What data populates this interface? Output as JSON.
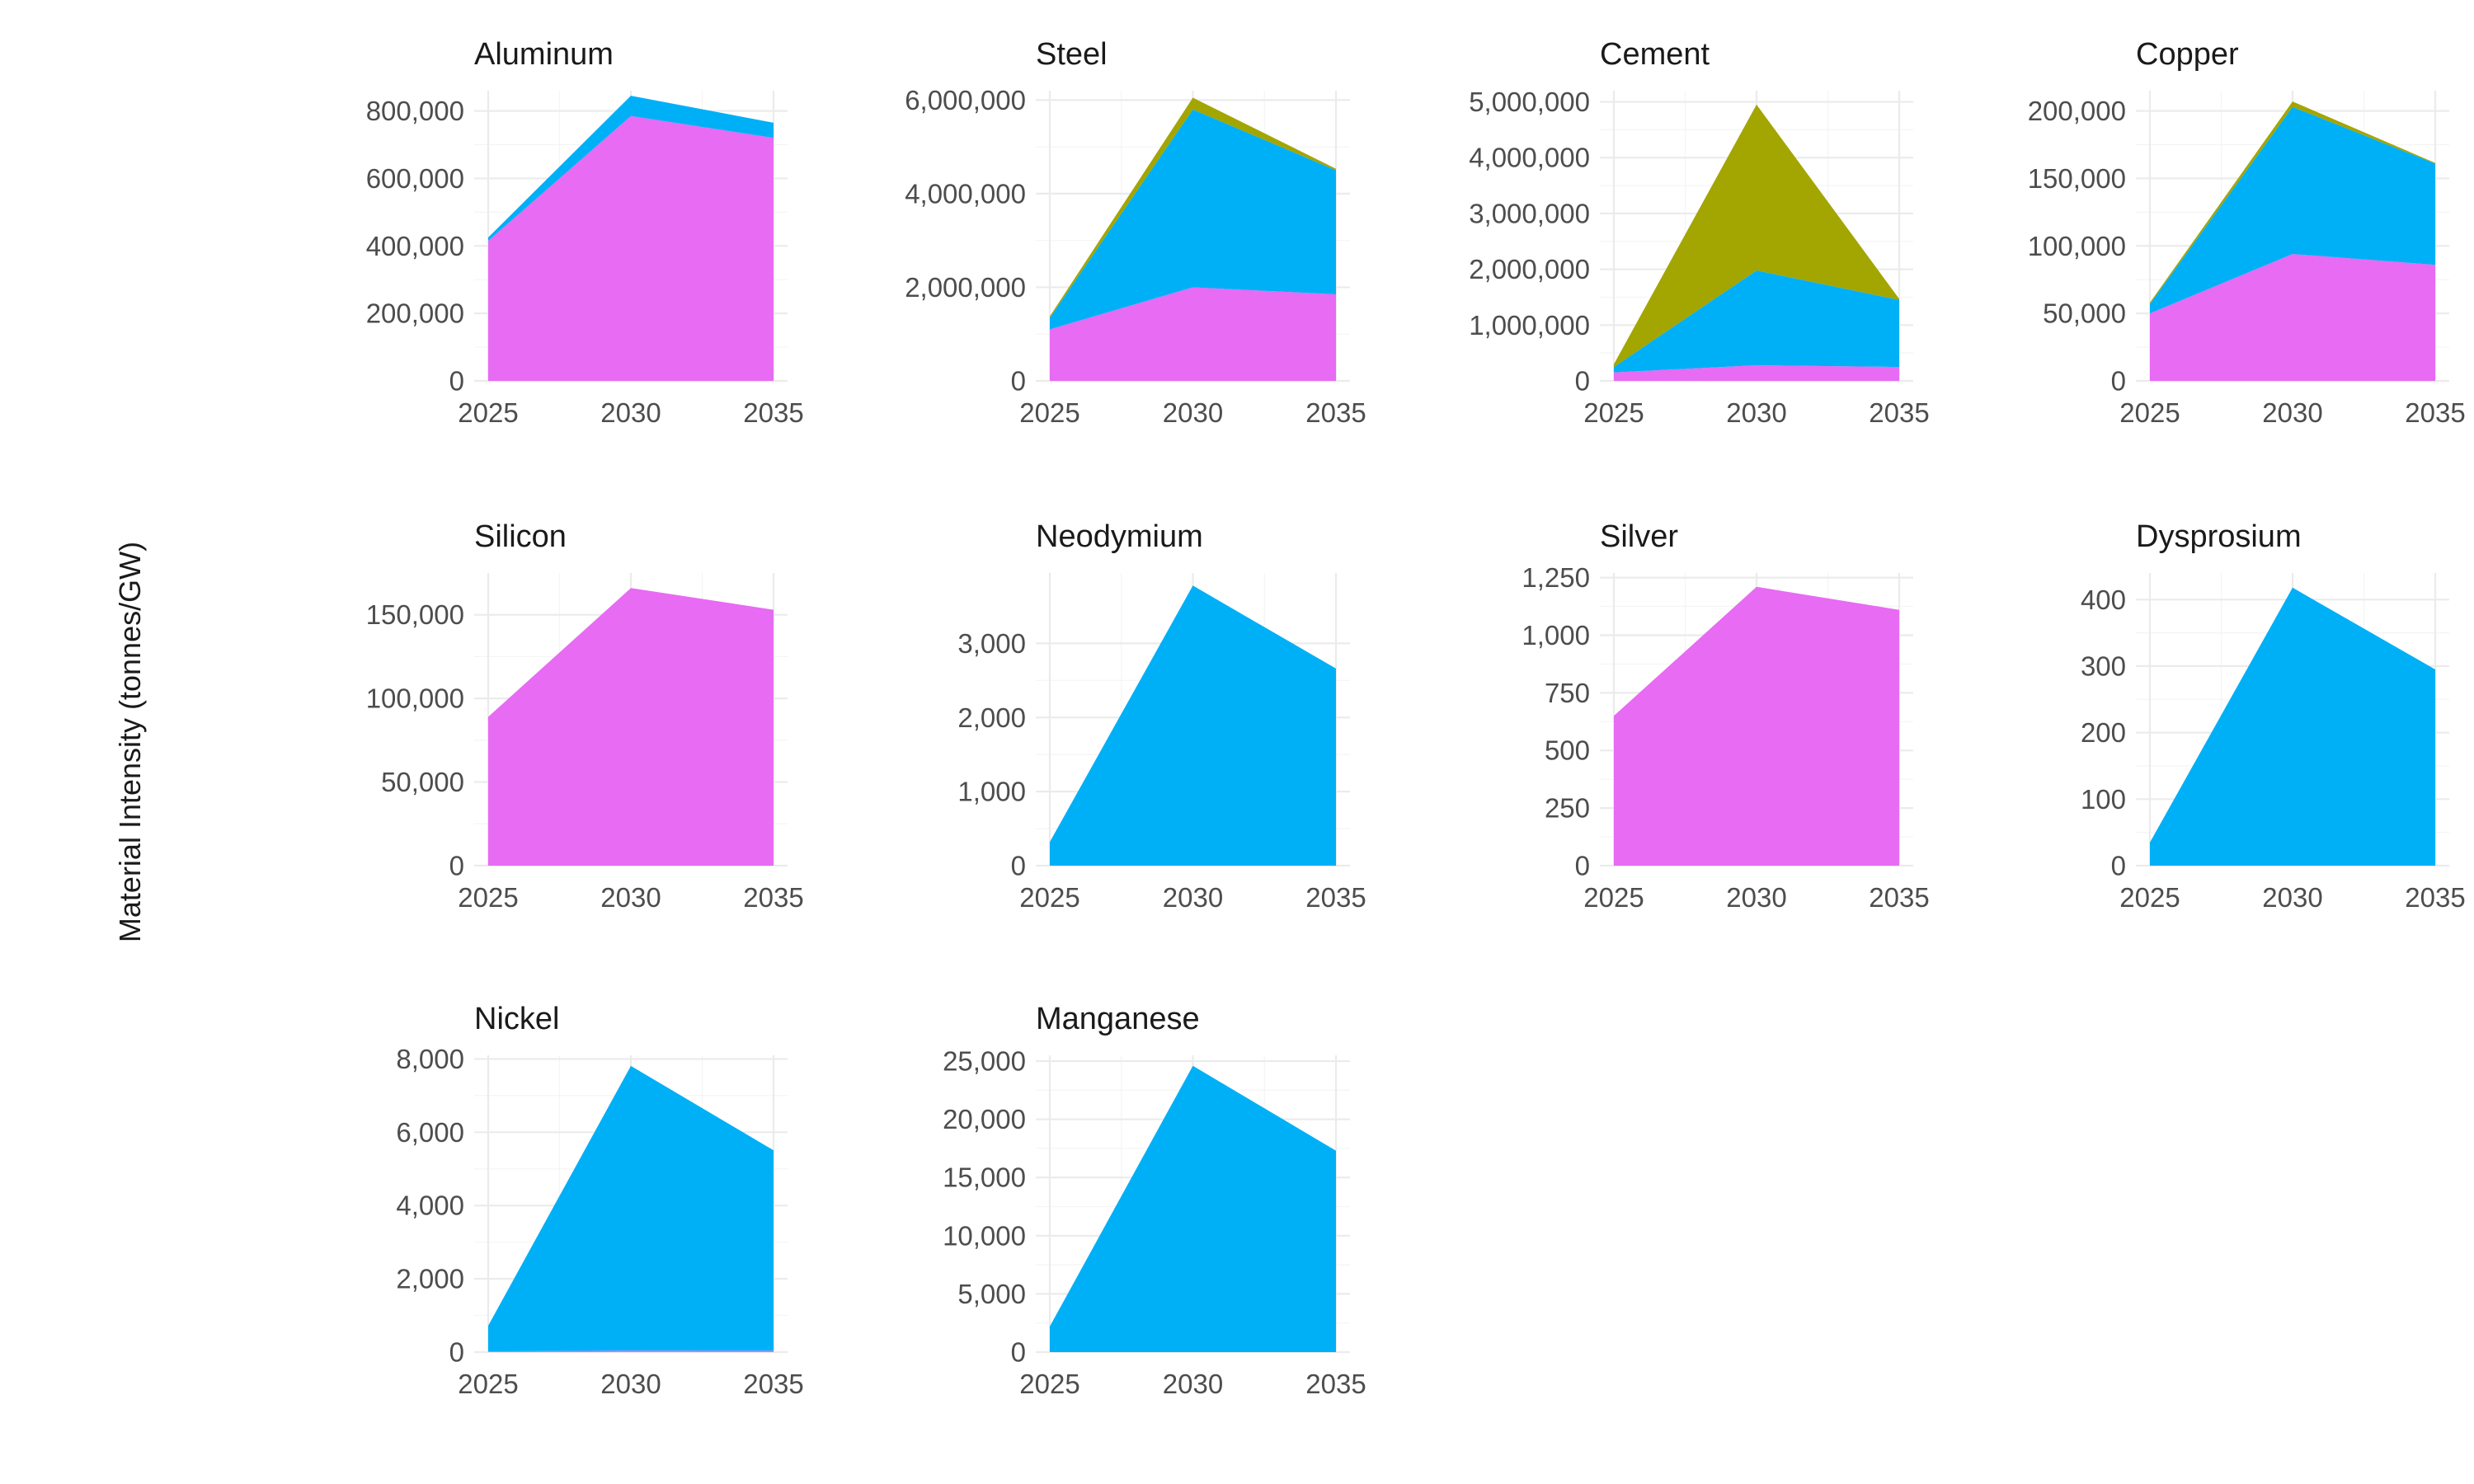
{
  "y_axis_label": "Material Intensity (tonnes/GW)",
  "colors": {
    "series_magenta": "#E76BF3",
    "series_blue": "#00B0F6",
    "series_olive": "#A3A500",
    "grid_major": "#EBEBEB",
    "grid_minor": "#F4F4F4",
    "tick_text": "#4D4D4D"
  },
  "chart_data": [
    {
      "type": "area",
      "stacked": true,
      "title": "Aluminum",
      "x": [
        2025,
        2030,
        2035
      ],
      "ylim": [
        0,
        860000
      ],
      "yticks": [
        0,
        200000,
        400000,
        600000,
        800000
      ],
      "series": [
        {
          "color": "#E76BF3",
          "values": [
            415000,
            785000,
            720000
          ]
        },
        {
          "color": "#00B0F6",
          "values": [
            10000,
            60000,
            45000
          ]
        }
      ]
    },
    {
      "type": "area",
      "stacked": true,
      "title": "Steel",
      "x": [
        2025,
        2030,
        2035
      ],
      "ylim": [
        0,
        6200000
      ],
      "yticks": [
        0,
        2000000,
        4000000,
        6000000
      ],
      "series": [
        {
          "color": "#E76BF3",
          "values": [
            1100000,
            2000000,
            1850000
          ]
        },
        {
          "color": "#00B0F6",
          "values": [
            250000,
            3800000,
            2650000
          ]
        },
        {
          "color": "#A3A500",
          "values": [
            30000,
            250000,
            30000
          ]
        }
      ]
    },
    {
      "type": "area",
      "stacked": true,
      "title": "Cement",
      "x": [
        2025,
        2030,
        2035
      ],
      "ylim": [
        0,
        5200000
      ],
      "yticks": [
        0,
        1000000,
        2000000,
        3000000,
        4000000,
        5000000
      ],
      "series": [
        {
          "color": "#E76BF3",
          "values": [
            150000,
            280000,
            250000
          ]
        },
        {
          "color": "#00B0F6",
          "values": [
            100000,
            1700000,
            1200000
          ]
        },
        {
          "color": "#A3A500",
          "values": [
            50000,
            2970000,
            20000
          ]
        }
      ]
    },
    {
      "type": "area",
      "stacked": true,
      "title": "Copper",
      "x": [
        2025,
        2030,
        2035
      ],
      "ylim": [
        0,
        215000
      ],
      "yticks": [
        0,
        50000,
        100000,
        150000,
        200000
      ],
      "series": [
        {
          "color": "#E76BF3",
          "values": [
            50000,
            94000,
            86000
          ]
        },
        {
          "color": "#00B0F6",
          "values": [
            7000,
            109000,
            75000
          ]
        },
        {
          "color": "#A3A500",
          "values": [
            1000,
            4000,
            500
          ]
        }
      ]
    },
    {
      "type": "area",
      "stacked": true,
      "title": "Silicon",
      "x": [
        2025,
        2030,
        2035
      ],
      "ylim": [
        0,
        175000
      ],
      "yticks": [
        0,
        50000,
        100000,
        150000
      ],
      "series": [
        {
          "color": "#E76BF3",
          "values": [
            89000,
            166000,
            153000
          ]
        }
      ]
    },
    {
      "type": "area",
      "stacked": true,
      "title": "Neodymium",
      "x": [
        2025,
        2030,
        2035
      ],
      "ylim": [
        0,
        3950
      ],
      "yticks": [
        0,
        1000,
        2000,
        3000
      ],
      "series": [
        {
          "color": "#00B0F6",
          "values": [
            320,
            3780,
            2660
          ]
        }
      ]
    },
    {
      "type": "area",
      "stacked": true,
      "title": "Silver",
      "x": [
        2025,
        2030,
        2035
      ],
      "ylim": [
        0,
        1270
      ],
      "yticks": [
        0,
        250,
        500,
        750,
        1000,
        1250
      ],
      "series": [
        {
          "color": "#E76BF3",
          "values": [
            650,
            1210,
            1110
          ]
        }
      ]
    },
    {
      "type": "area",
      "stacked": true,
      "title": "Dysprosium",
      "x": [
        2025,
        2030,
        2035
      ],
      "ylim": [
        0,
        440
      ],
      "yticks": [
        0,
        100,
        200,
        300,
        400
      ],
      "series": [
        {
          "color": "#00B0F6",
          "values": [
            35,
            418,
            295
          ]
        }
      ]
    },
    {
      "type": "area",
      "stacked": true,
      "title": "Nickel",
      "x": [
        2025,
        2030,
        2035
      ],
      "ylim": [
        0,
        8100
      ],
      "yticks": [
        0,
        2000,
        4000,
        6000,
        8000
      ],
      "series": [
        {
          "color": "#E76BF3",
          "values": [
            20,
            40,
            35
          ]
        },
        {
          "color": "#00B0F6",
          "values": [
            700,
            7770,
            5470
          ]
        }
      ]
    },
    {
      "type": "area",
      "stacked": true,
      "title": "Manganese",
      "x": [
        2025,
        2030,
        2035
      ],
      "ylim": [
        0,
        25500
      ],
      "yticks": [
        0,
        5000,
        10000,
        15000,
        20000,
        25000
      ],
      "series": [
        {
          "color": "#00B0F6",
          "values": [
            2200,
            24600,
            17300
          ]
        }
      ]
    }
  ]
}
